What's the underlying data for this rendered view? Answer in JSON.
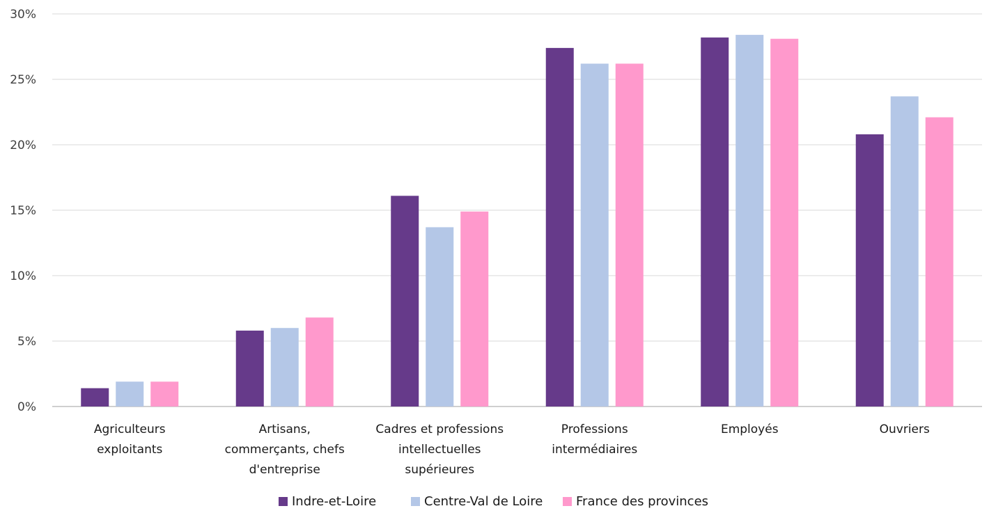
{
  "chart_data": {
    "type": "bar",
    "categories": [
      [
        "Agriculteurs",
        "exploitants"
      ],
      [
        "Artisans,",
        "commerçants, chefs",
        "d'entreprise"
      ],
      [
        "Cadres et professions",
        "intellectuelles",
        "supérieures"
      ],
      [
        "Professions",
        "intermédiaires"
      ],
      [
        "Employés"
      ],
      [
        "Ouvriers"
      ]
    ],
    "series": [
      {
        "name": "Indre-et-Loire",
        "color": "#663a8a",
        "values": [
          1.4,
          5.8,
          16.1,
          27.4,
          28.2,
          20.8
        ]
      },
      {
        "name": "Centre-Val de Loire",
        "color": "#b4c7e7",
        "values": [
          1.9,
          6.0,
          13.7,
          26.2,
          28.4,
          23.7
        ]
      },
      {
        "name": "France des provinces",
        "color": "#ff99cc",
        "values": [
          1.9,
          6.8,
          14.9,
          26.2,
          28.1,
          22.1
        ]
      }
    ],
    "yticks": [
      "0%",
      "5%",
      "10%",
      "15%",
      "20%",
      "25%",
      "30%"
    ],
    "ylim": [
      0,
      30
    ],
    "grid": true,
    "legend_position": "bottom"
  }
}
